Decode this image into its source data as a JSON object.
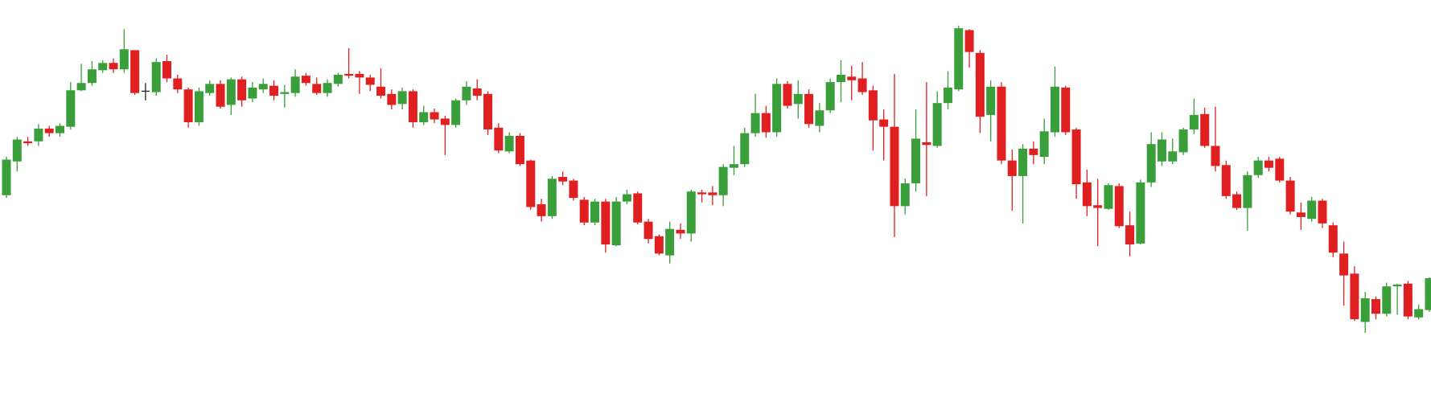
{
  "chart_data": {
    "type": "candlestick",
    "up_color": "#3a9e3a",
    "down_color": "#e02020",
    "doji_color": "#222222",
    "ylim": [
      0,
      432
    ],
    "candles": [
      [
        218,
        260,
        215,
        257
      ],
      [
        255,
        282,
        244,
        279
      ],
      [
        277,
        282,
        272,
        275
      ],
      [
        277,
        296,
        272,
        291
      ],
      [
        291,
        294,
        282,
        286
      ],
      [
        286,
        297,
        282,
        294
      ],
      [
        293,
        342,
        290,
        333
      ],
      [
        333,
        362,
        332,
        341
      ],
      [
        341,
        365,
        338,
        356
      ],
      [
        355,
        366,
        352,
        363
      ],
      [
        363,
        368,
        352,
        356
      ],
      [
        356,
        400,
        352,
        378
      ],
      [
        377,
        377,
        328,
        330
      ],
      [
        332,
        341,
        322,
        332
      ],
      [
        331,
        368,
        327,
        364
      ],
      [
        365,
        372,
        342,
        346
      ],
      [
        346,
        350,
        330,
        334
      ],
      [
        334,
        336,
        292,
        298
      ],
      [
        298,
        336,
        294,
        332
      ],
      [
        330,
        344,
        327,
        340
      ],
      [
        340,
        344,
        313,
        315
      ],
      [
        317,
        347,
        306,
        345
      ],
      [
        345,
        348,
        315,
        322
      ],
      [
        324,
        342,
        320,
        336
      ],
      [
        334,
        346,
        330,
        340
      ],
      [
        338,
        344,
        322,
        327
      ],
      [
        329,
        339,
        314,
        331
      ],
      [
        330,
        356,
        326,
        348
      ],
      [
        349,
        352,
        338,
        341
      ],
      [
        340,
        347,
        328,
        330
      ],
      [
        330,
        345,
        326,
        341
      ],
      [
        340,
        352,
        337,
        350
      ],
      [
        351,
        379,
        346,
        349
      ],
      [
        351,
        354,
        329,
        347
      ],
      [
        347,
        350,
        332,
        339
      ],
      [
        337,
        357,
        324,
        327
      ],
      [
        329,
        334,
        312,
        317
      ],
      [
        318,
        336,
        312,
        332
      ],
      [
        332,
        334,
        292,
        298
      ],
      [
        298,
        316,
        295,
        309
      ],
      [
        309,
        313,
        297,
        301
      ],
      [
        302,
        305,
        262,
        295
      ],
      [
        295,
        324,
        292,
        322
      ],
      [
        322,
        343,
        317,
        337
      ],
      [
        335,
        345,
        322,
        327
      ],
      [
        329,
        332,
        284,
        290
      ],
      [
        292,
        297,
        264,
        267
      ],
      [
        266,
        287,
        264,
        283
      ],
      [
        283,
        286,
        250,
        252
      ],
      [
        256,
        257,
        202,
        205
      ],
      [
        208,
        214,
        189,
        195
      ],
      [
        195,
        239,
        192,
        236
      ],
      [
        238,
        244,
        229,
        233
      ],
      [
        234,
        236,
        212,
        215
      ],
      [
        213,
        216,
        185,
        188
      ],
      [
        188,
        214,
        185,
        211
      ],
      [
        211,
        214,
        155,
        164
      ],
      [
        163,
        216,
        162,
        211
      ],
      [
        211,
        224,
        208,
        219
      ],
      [
        220,
        222,
        186,
        188
      ],
      [
        189,
        192,
        165,
        170
      ],
      [
        173,
        175,
        152,
        154
      ],
      [
        152,
        189,
        143,
        181
      ],
      [
        180,
        187,
        170,
        176
      ],
      [
        176,
        224,
        167,
        222
      ],
      [
        221,
        224,
        210,
        219
      ],
      [
        221,
        228,
        207,
        218
      ],
      [
        218,
        252,
        206,
        249
      ],
      [
        248,
        272,
        240,
        252
      ],
      [
        252,
        292,
        249,
        286
      ],
      [
        286,
        329,
        282,
        308
      ],
      [
        308,
        316,
        281,
        287
      ],
      [
        287,
        346,
        282,
        340
      ],
      [
        340,
        343,
        313,
        316
      ],
      [
        318,
        344,
        302,
        329
      ],
      [
        329,
        334,
        292,
        296
      ],
      [
        294,
        319,
        287,
        311
      ],
      [
        311,
        346,
        308,
        342
      ],
      [
        342,
        366,
        320,
        350
      ],
      [
        348,
        360,
        322,
        344
      ],
      [
        346,
        364,
        328,
        331
      ],
      [
        333,
        338,
        267,
        300
      ],
      [
        301,
        312,
        256,
        293
      ],
      [
        293,
        351,
        172,
        206
      ],
      [
        206,
        236,
        197,
        231
      ],
      [
        231,
        312,
        222,
        280
      ],
      [
        276,
        342,
        217,
        273
      ],
      [
        272,
        332,
        270,
        319
      ],
      [
        319,
        354,
        312,
        336
      ],
      [
        334,
        404,
        332,
        401
      ],
      [
        399,
        400,
        358,
        375
      ],
      [
        374,
        377,
        286,
        304
      ],
      [
        306,
        344,
        277,
        337
      ],
      [
        337,
        342,
        252,
        256
      ],
      [
        256,
        268,
        201,
        239
      ],
      [
        239,
        274,
        187,
        269
      ],
      [
        269,
        277,
        252,
        262
      ],
      [
        260,
        302,
        252,
        288
      ],
      [
        287,
        359,
        282,
        337
      ],
      [
        336,
        338,
        284,
        287
      ],
      [
        290,
        292,
        214,
        230
      ],
      [
        232,
        246,
        195,
        206
      ],
      [
        207,
        236,
        162,
        204
      ],
      [
        203,
        231,
        202,
        229
      ],
      [
        228,
        231,
        182,
        184
      ],
      [
        185,
        200,
        151,
        164
      ],
      [
        165,
        235,
        164,
        232
      ],
      [
        232,
        287,
        227,
        274
      ],
      [
        255,
        287,
        250,
        279
      ],
      [
        255,
        280,
        252,
        266
      ],
      [
        265,
        292,
        262,
        290
      ],
      [
        290,
        324,
        285,
        306
      ],
      [
        307,
        314,
        270,
        272
      ],
      [
        272,
        315,
        244,
        250
      ],
      [
        251,
        256,
        214,
        217
      ],
      [
        219,
        222,
        202,
        204
      ],
      [
        204,
        244,
        179,
        240
      ],
      [
        240,
        260,
        237,
        256
      ],
      [
        256,
        260,
        244,
        248
      ],
      [
        258,
        260,
        232,
        234
      ],
      [
        234,
        238,
        197,
        200
      ],
      [
        199,
        210,
        180,
        194
      ],
      [
        192,
        216,
        189,
        212
      ],
      [
        212,
        214,
        182,
        187
      ],
      [
        185,
        188,
        150,
        155
      ],
      [
        154,
        167,
        97,
        130
      ],
      [
        132,
        140,
        80,
        82
      ],
      [
        79,
        112,
        67,
        105
      ],
      [
        104,
        107,
        82,
        88
      ],
      [
        88,
        122,
        85,
        118
      ],
      [
        118,
        121,
        87,
        120
      ],
      [
        121,
        124,
        82,
        85
      ],
      [
        84,
        98,
        82,
        93
      ],
      [
        92,
        128,
        90,
        127
      ]
    ]
  }
}
